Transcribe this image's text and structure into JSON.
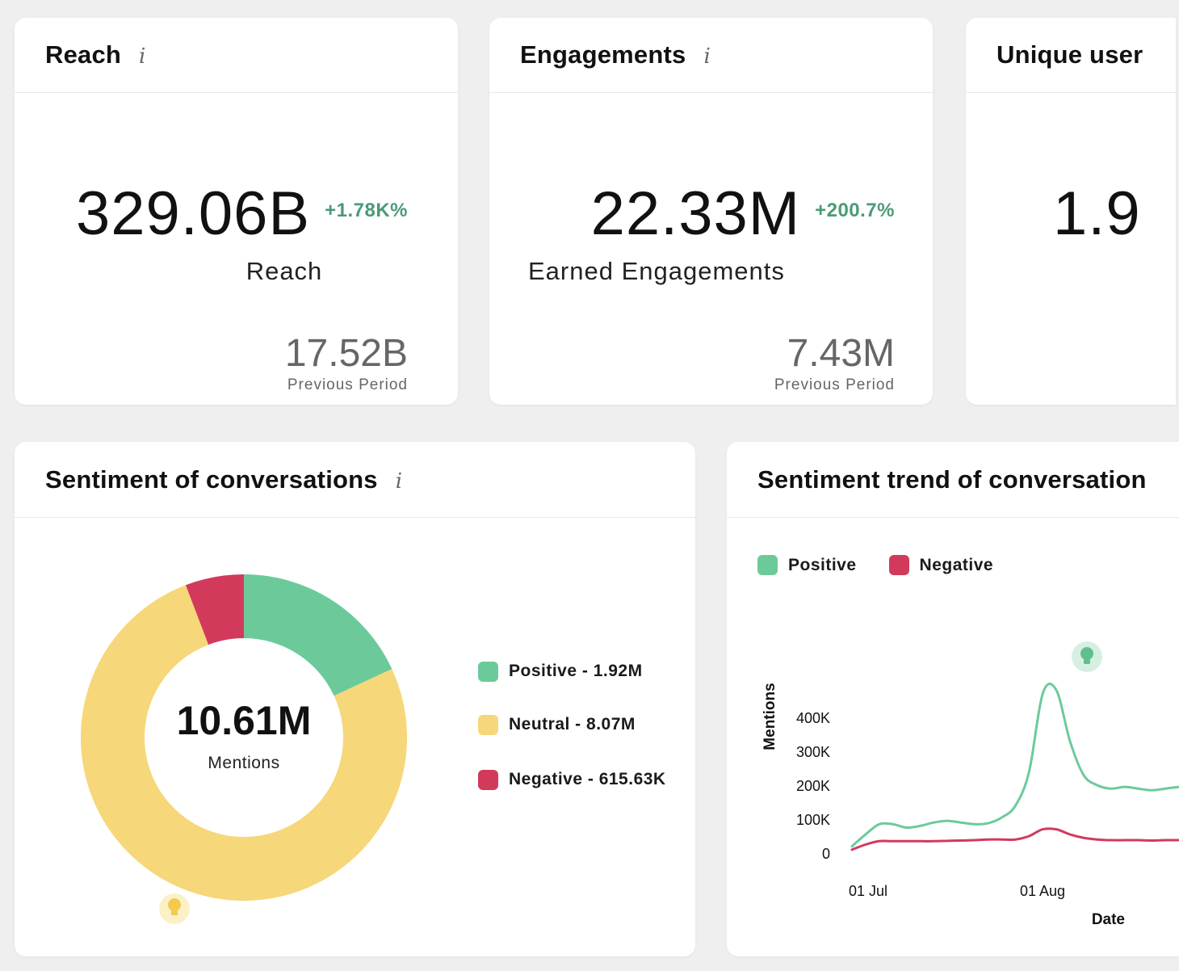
{
  "colors": {
    "positive": "#6cca9a",
    "neutral": "#f6d779",
    "negative": "#d23a5c",
    "change_up": "#4a9a76"
  },
  "cards": {
    "reach": {
      "title": "Reach",
      "info": "i",
      "value": "329.06B",
      "change": "+1.78K%",
      "label": "Reach",
      "prev_value": "17.52B",
      "prev_label": "Previous Period"
    },
    "engagements": {
      "title": "Engagements",
      "info": "i",
      "value": "22.33M",
      "change": "+200.7%",
      "label": "Earned Engagements",
      "prev_value": "7.43M",
      "prev_label": "Previous Period"
    },
    "unique_users": {
      "title": "Unique user",
      "value": "1.9"
    }
  },
  "sentiment": {
    "title": "Sentiment of conversations",
    "info": "i",
    "total_value": "10.61M",
    "total_label": "Mentions",
    "legend": [
      {
        "label": "Positive - 1.92M",
        "color": "#6cca9a"
      },
      {
        "label": "Neutral - 8.07M",
        "color": "#f6d779"
      },
      {
        "label": "Negative - 615.63K",
        "color": "#d23a5c"
      }
    ]
  },
  "trend": {
    "title": "Sentiment trend of conversation",
    "legend": [
      {
        "label": "Positive",
        "color": "#6cca9a"
      },
      {
        "label": "Negative",
        "color": "#d23a5c"
      }
    ]
  },
  "chart_data": [
    {
      "type": "pie",
      "title": "Sentiment of conversations",
      "categories": [
        "Positive",
        "Neutral",
        "Negative"
      ],
      "values": [
        1.92,
        8.07,
        0.61563
      ],
      "unit": "M mentions",
      "center_label": "10.61M Mentions",
      "colors": [
        "#6cca9a",
        "#f6d779",
        "#d23a5c"
      ]
    },
    {
      "type": "line",
      "title": "Sentiment trend of conversation",
      "xlabel": "Date",
      "ylabel": "Mentions",
      "x_tick_labels": [
        "01 Jul",
        "01 Aug"
      ],
      "y_tick_labels": [
        "0",
        "100K",
        "200K",
        "300K",
        "400K"
      ],
      "ylim": [
        0,
        400000
      ],
      "x": [
        0,
        3,
        6,
        9,
        12,
        15,
        18,
        21,
        24,
        27,
        30,
        33,
        36,
        39,
        42,
        45,
        48,
        51,
        54,
        57,
        60,
        63,
        66,
        69,
        72
      ],
      "series": [
        {
          "name": "Positive",
          "color": "#6cca9a",
          "values": [
            20000,
            55000,
            85000,
            85000,
            75000,
            80000,
            90000,
            95000,
            90000,
            85000,
            88000,
            105000,
            140000,
            240000,
            470000,
            480000,
            330000,
            230000,
            200000,
            190000,
            195000,
            190000,
            185000,
            190000,
            195000
          ]
        },
        {
          "name": "Negative",
          "color": "#d23a5c",
          "values": [
            10000,
            25000,
            35000,
            35000,
            35000,
            35000,
            35000,
            36000,
            37000,
            38000,
            40000,
            40000,
            40000,
            50000,
            70000,
            70000,
            55000,
            45000,
            40000,
            38000,
            38000,
            38000,
            37000,
            38000,
            38000
          ]
        }
      ]
    }
  ]
}
